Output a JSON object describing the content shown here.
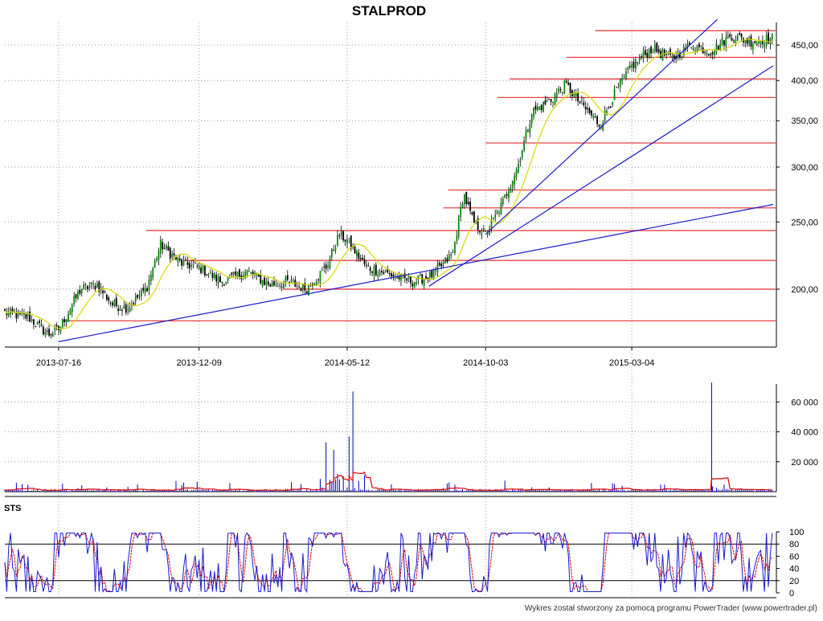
{
  "title": "STALPROD",
  "footer": "Wykres został stworzony za pomocą programu PowerTrader (www.powertrader.pl)",
  "colors": {
    "grid": "#9a9a9a",
    "candle_up": "#0a8a0a",
    "candle_down": "#000000",
    "ma": "#d8d800",
    "support": "#e84040",
    "trend": "#1a1ad0",
    "volume": "#0000c8",
    "volume_ma": "#e00000",
    "k_line": "#1a1ad0",
    "d_line": "#e00000"
  },
  "chart_data": [
    {
      "type": "line",
      "name": "price",
      "scale": "log",
      "ylim": [
        165,
        485
      ],
      "yticks": [
        200,
        250,
        300,
        350,
        400,
        450
      ],
      "ytick_labels": [
        "200,00",
        "250,00",
        "300,00",
        "350,00",
        "400,00",
        "450,00"
      ],
      "xtick_labels": [
        "2013-07-16",
        "2013-12-09",
        "2014-05-12",
        "2014-10-03",
        "2015-03-04"
      ],
      "x_range": [
        "2013-05-21",
        "2015-07-29"
      ],
      "close_points": [
        [
          "2013-05-21",
          185
        ],
        [
          "2013-06-15",
          182
        ],
        [
          "2013-07-05",
          172
        ],
        [
          "2013-07-16",
          175
        ],
        [
          "2013-08-08",
          200
        ],
        [
          "2013-08-25",
          203
        ],
        [
          "2013-09-10",
          190
        ],
        [
          "2013-09-25",
          188
        ],
        [
          "2013-10-15",
          200
        ],
        [
          "2013-10-30",
          232
        ],
        [
          "2013-11-20",
          218
        ],
        [
          "2013-12-09",
          215
        ],
        [
          "2014-01-01",
          205
        ],
        [
          "2014-01-28",
          212
        ],
        [
          "2014-02-20",
          203
        ],
        [
          "2014-03-10",
          205
        ],
        [
          "2014-03-30",
          200
        ],
        [
          "2014-04-20",
          215
        ],
        [
          "2014-05-04",
          240
        ],
        [
          "2014-05-12",
          235
        ],
        [
          "2014-06-01",
          215
        ],
        [
          "2014-06-25",
          210
        ],
        [
          "2014-07-20",
          205
        ],
        [
          "2014-08-10",
          210
        ],
        [
          "2014-08-30",
          225
        ],
        [
          "2014-09-10",
          275
        ],
        [
          "2014-09-20",
          250
        ],
        [
          "2014-10-03",
          240
        ],
        [
          "2014-10-20",
          265
        ],
        [
          "2014-11-05",
          300
        ],
        [
          "2014-11-20",
          360
        ],
        [
          "2014-12-10",
          375
        ],
        [
          "2014-12-25",
          395
        ],
        [
          "2015-01-10",
          370
        ],
        [
          "2015-01-30",
          345
        ],
        [
          "2015-02-15",
          385
        ],
        [
          "2015-03-04",
          420
        ],
        [
          "2015-03-25",
          445
        ],
        [
          "2015-04-15",
          430
        ],
        [
          "2015-05-05",
          450
        ],
        [
          "2015-05-25",
          440
        ],
        [
          "2015-06-15",
          465
        ],
        [
          "2015-07-05",
          455
        ],
        [
          "2015-07-29",
          460
        ]
      ],
      "support_levels": [
        {
          "value": 180,
          "from": "2013-07-20"
        },
        {
          "value": 200,
          "from": "2014-03-06"
        },
        {
          "value": 220,
          "from": "2013-11-23"
        },
        {
          "value": 243,
          "from": "2013-10-15"
        },
        {
          "value": 262,
          "from": "2014-08-20"
        },
        {
          "value": 278,
          "from": "2014-08-25"
        },
        {
          "value": 325,
          "from": "2014-10-03"
        },
        {
          "value": 378,
          "from": "2014-10-15"
        },
        {
          "value": 402,
          "from": "2014-10-28"
        },
        {
          "value": 432,
          "from": "2014-12-26"
        },
        {
          "value": 472,
          "from": "2015-01-25"
        }
      ],
      "trend_lines": [
        {
          "from": [
            "2013-07-16",
            168
          ],
          "to": [
            "2015-07-29",
            265
          ]
        },
        {
          "from": [
            "2014-08-05",
            202
          ],
          "to": [
            "2015-07-29",
            420
          ]
        },
        {
          "from": [
            "2014-10-03",
            240
          ],
          "to": [
            "2015-06-01",
            490
          ]
        }
      ]
    },
    {
      "type": "bar",
      "name": "volume",
      "ylim": [
        0,
        72000
      ],
      "yticks": [
        20000,
        40000,
        60000
      ],
      "ytick_labels": [
        "20 000",
        "40 000",
        "60 000"
      ],
      "notable_bars": [
        [
          "2014-04-20",
          33000
        ],
        [
          "2014-04-28",
          28000
        ],
        [
          "2014-05-14",
          37000
        ],
        [
          "2014-05-18",
          67000
        ],
        [
          "2015-05-26",
          73000
        ]
      ]
    },
    {
      "type": "line",
      "name": "STS",
      "ylim": [
        0,
        100
      ],
      "yticks": [
        0,
        20,
        40,
        60,
        80,
        100
      ],
      "ytick_labels": [
        "0",
        "20",
        "40",
        "60",
        "80",
        "100"
      ],
      "levels": [
        20,
        80
      ]
    }
  ]
}
